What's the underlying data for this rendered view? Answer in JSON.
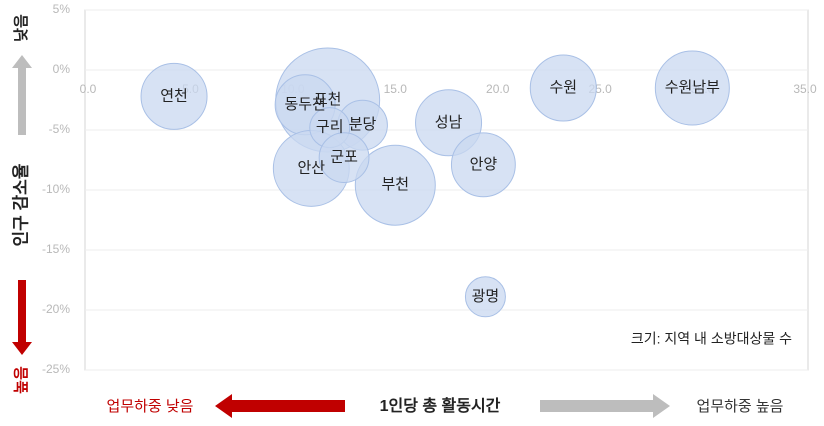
{
  "chart_data": {
    "type": "scatter",
    "x_label": "1인당 총 활동시간",
    "x_low_label": "업무하중 낮음",
    "x_high_label": "업무하중 높음",
    "y_label": "인구 감소율",
    "y_low_label": "낮음",
    "y_high_label": "높음",
    "size_note": "크기: 지역 내 소방대상물 수",
    "color": "#c9d8f0",
    "xlim": [
      0,
      35
    ],
    "xticks": [
      {
        "value": 0,
        "label": "0.0"
      },
      {
        "value": 5,
        "label": "5.0"
      },
      {
        "value": 10,
        "label": "10.0"
      },
      {
        "value": 15,
        "label": "15.0"
      },
      {
        "value": 20,
        "label": "20.0"
      },
      {
        "value": 25,
        "label": "25.0"
      },
      {
        "value": 30,
        "label": "30.0"
      },
      {
        "value": 35,
        "label": "35.0"
      }
    ],
    "ylim": [
      -25,
      5
    ],
    "yticks": [
      {
        "value": 5,
        "label": "5%"
      },
      {
        "value": 0,
        "label": "0%"
      },
      {
        "value": -5,
        "label": "-5%"
      },
      {
        "value": -10,
        "label": "-10%"
      },
      {
        "value": -15,
        "label": "-15%"
      },
      {
        "value": -20,
        "label": "-20%"
      },
      {
        "value": -25,
        "label": "-25%"
      }
    ],
    "grid": true,
    "points": [
      {
        "label": "연천",
        "x": 4.2,
        "y": -2.2,
        "size": 109
      },
      {
        "label": "포천",
        "x": 11.7,
        "y": -2.5,
        "size": 270
      },
      {
        "label": "동두천",
        "x": 10.6,
        "y": -2.9,
        "size": 90
      },
      {
        "label": "안산",
        "x": 10.9,
        "y": -8.2,
        "size": 144
      },
      {
        "label": "부천",
        "x": 15.0,
        "y": -9.6,
        "size": 160
      },
      {
        "label": "분당",
        "x": 13.4,
        "y": -4.6,
        "size": 62
      },
      {
        "label": "구리",
        "x": 11.8,
        "y": -4.8,
        "size": 40
      },
      {
        "label": "군포",
        "x": 12.5,
        "y": -7.3,
        "size": 62
      },
      {
        "label": "성남",
        "x": 17.6,
        "y": -4.4,
        "size": 109
      },
      {
        "label": "안양",
        "x": 19.3,
        "y": -7.9,
        "size": 102
      },
      {
        "label": "광명",
        "x": 19.4,
        "y": -18.9,
        "size": 40
      },
      {
        "label": "수원",
        "x": 23.2,
        "y": -1.5,
        "size": 109
      },
      {
        "label": "수원남부",
        "x": 29.5,
        "y": -1.5,
        "size": 137
      }
    ]
  }
}
